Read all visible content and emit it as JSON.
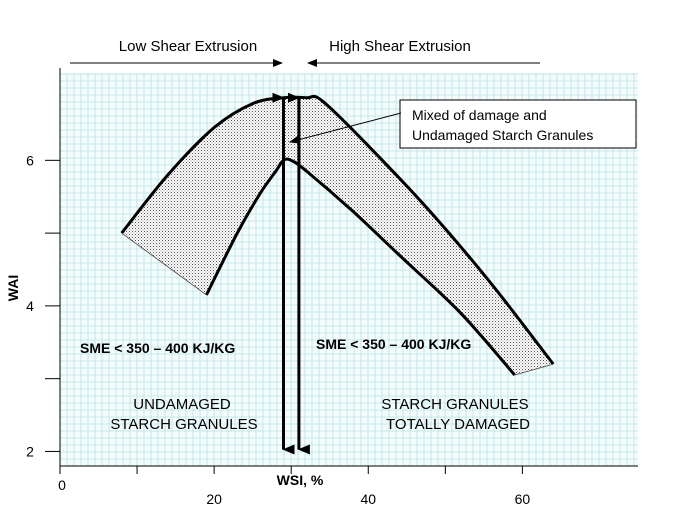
{
  "chart_data": {
    "type": "area",
    "xlabel": "WSI, %",
    "ylabel": "WAI",
    "xlim": [
      0,
      75
    ],
    "ylim": [
      1.8,
      7.2
    ],
    "x_ticks": [
      0,
      20,
      40,
      60
    ],
    "y_ticks": [
      2,
      4,
      6
    ],
    "y_tick_marks": [
      3,
      5
    ],
    "x_tick_marks": [
      10,
      30,
      50
    ],
    "grid": true,
    "grid_color": "#b9e3e6",
    "fill_color": "#d9d9d9",
    "outer_curve": [
      [
        8,
        5.0
      ],
      [
        14,
        5.8
      ],
      [
        20,
        6.45
      ],
      [
        25,
        6.78
      ],
      [
        29,
        6.86
      ],
      [
        32,
        6.86
      ],
      [
        34,
        6.82
      ],
      [
        40,
        6.2
      ],
      [
        48,
        5.3
      ],
      [
        56,
        4.3
      ],
      [
        64,
        3.2
      ]
    ],
    "inner_curve": [
      [
        19,
        4.15
      ],
      [
        23,
        5.0
      ],
      [
        26,
        5.55
      ],
      [
        28,
        5.85
      ],
      [
        29,
        6.0
      ],
      [
        30,
        6.0
      ],
      [
        32,
        5.85
      ],
      [
        38,
        5.3
      ],
      [
        44,
        4.7
      ],
      [
        52,
        3.9
      ],
      [
        59,
        3.05
      ]
    ],
    "arrows": [
      {
        "x": 29,
        "y_top": 6.86,
        "y_bottom": 2.0
      },
      {
        "x": 31,
        "y_top": 6.86,
        "y_bottom": 2.0
      }
    ],
    "annotations": {
      "low_shear": "Low Shear Extrusion",
      "high_shear": "High Shear Extrusion",
      "mixed_line1": "Mixed of damage and",
      "mixed_line2": "Undamaged Starch Granules",
      "sme_left": "SME < 350 – 400 KJ/KG",
      "sme_right": "SME < 350 – 400 KJ/KG",
      "undamaged_line1": "UNDAMAGED",
      "undamaged_line2": "STARCH GRANULES",
      "damaged_line1": "STARCH GRANULES",
      "damaged_line2": "TOTALLY DAMAGED"
    }
  }
}
